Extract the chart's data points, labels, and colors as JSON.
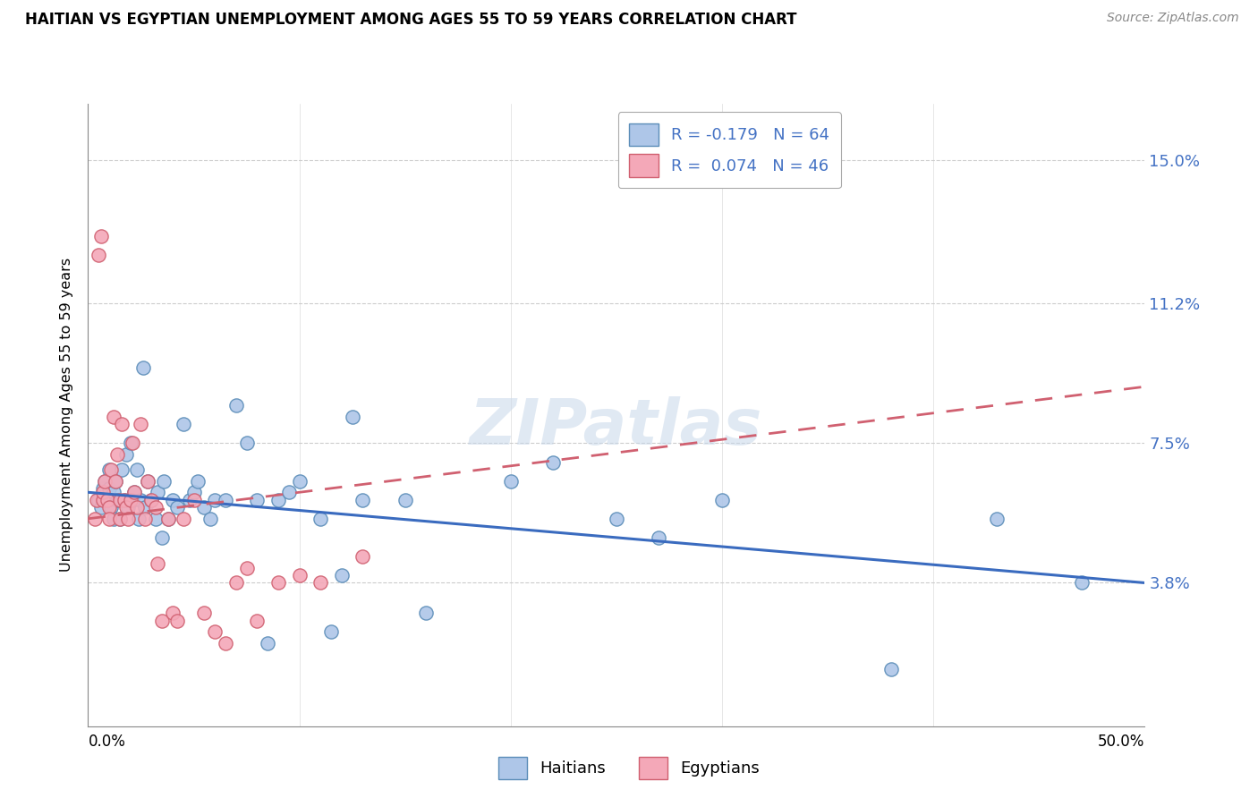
{
  "title": "HAITIAN VS EGYPTIAN UNEMPLOYMENT AMONG AGES 55 TO 59 YEARS CORRELATION CHART",
  "source": "Source: ZipAtlas.com",
  "ylabel": "Unemployment Among Ages 55 to 59 years",
  "yticks": [
    0.038,
    0.075,
    0.112,
    0.15
  ],
  "ytick_labels": [
    "3.8%",
    "7.5%",
    "11.2%",
    "15.0%"
  ],
  "xmin": 0.0,
  "xmax": 0.5,
  "ymin": 0.0,
  "ymax": 0.165,
  "haitian_R": -0.179,
  "haitian_N": 64,
  "egyptian_R": 0.074,
  "egyptian_N": 46,
  "haitian_color": "#aec6e8",
  "haitian_edge": "#5b8db8",
  "egyptian_color": "#f4a8b8",
  "egyptian_edge": "#d06070",
  "trendline_haitian_color": "#3a6bbf",
  "trendline_egyptian_color": "#d06070",
  "watermark": "ZIPatlas",
  "legend_label_haitian": "Haitians",
  "legend_label_egyptian": "Egyptians",
  "haitian_trend_x0": 0.0,
  "haitian_trend_y0": 0.062,
  "haitian_trend_x1": 0.5,
  "haitian_trend_y1": 0.038,
  "egyptian_trend_x0": 0.0,
  "egyptian_trend_y0": 0.055,
  "egyptian_trend_x1": 0.5,
  "egyptian_trend_y1": 0.09,
  "haitian_x": [
    0.005,
    0.006,
    0.007,
    0.008,
    0.009,
    0.01,
    0.01,
    0.011,
    0.012,
    0.012,
    0.013,
    0.014,
    0.015,
    0.016,
    0.017,
    0.018,
    0.019,
    0.02,
    0.021,
    0.022,
    0.023,
    0.024,
    0.025,
    0.026,
    0.027,
    0.028,
    0.03,
    0.032,
    0.033,
    0.035,
    0.036,
    0.038,
    0.04,
    0.042,
    0.045,
    0.048,
    0.05,
    0.052,
    0.055,
    0.058,
    0.06,
    0.065,
    0.07,
    0.075,
    0.08,
    0.085,
    0.09,
    0.095,
    0.1,
    0.11,
    0.115,
    0.12,
    0.125,
    0.13,
    0.15,
    0.16,
    0.2,
    0.22,
    0.25,
    0.27,
    0.3,
    0.38,
    0.43,
    0.47
  ],
  "haitian_y": [
    0.06,
    0.058,
    0.063,
    0.065,
    0.06,
    0.068,
    0.063,
    0.058,
    0.055,
    0.062,
    0.065,
    0.06,
    0.055,
    0.068,
    0.06,
    0.072,
    0.058,
    0.075,
    0.06,
    0.062,
    0.068,
    0.055,
    0.06,
    0.095,
    0.058,
    0.065,
    0.06,
    0.055,
    0.062,
    0.05,
    0.065,
    0.055,
    0.06,
    0.058,
    0.08,
    0.06,
    0.062,
    0.065,
    0.058,
    0.055,
    0.06,
    0.06,
    0.085,
    0.075,
    0.06,
    0.022,
    0.06,
    0.062,
    0.065,
    0.055,
    0.025,
    0.04,
    0.082,
    0.06,
    0.06,
    0.03,
    0.065,
    0.07,
    0.055,
    0.05,
    0.06,
    0.015,
    0.055,
    0.038
  ],
  "egyptian_x": [
    0.003,
    0.004,
    0.005,
    0.006,
    0.007,
    0.007,
    0.008,
    0.009,
    0.01,
    0.01,
    0.011,
    0.012,
    0.013,
    0.014,
    0.015,
    0.015,
    0.016,
    0.017,
    0.018,
    0.019,
    0.02,
    0.021,
    0.022,
    0.023,
    0.025,
    0.027,
    0.028,
    0.03,
    0.032,
    0.033,
    0.035,
    0.038,
    0.04,
    0.042,
    0.045,
    0.05,
    0.055,
    0.06,
    0.065,
    0.07,
    0.075,
    0.08,
    0.09,
    0.1,
    0.11,
    0.13
  ],
  "egyptian_y": [
    0.055,
    0.06,
    0.125,
    0.13,
    0.06,
    0.062,
    0.065,
    0.06,
    0.058,
    0.055,
    0.068,
    0.082,
    0.065,
    0.072,
    0.06,
    0.055,
    0.08,
    0.06,
    0.058,
    0.055,
    0.06,
    0.075,
    0.062,
    0.058,
    0.08,
    0.055,
    0.065,
    0.06,
    0.058,
    0.043,
    0.028,
    0.055,
    0.03,
    0.028,
    0.055,
    0.06,
    0.03,
    0.025,
    0.022,
    0.038,
    0.042,
    0.028,
    0.038,
    0.04,
    0.038,
    0.045
  ]
}
